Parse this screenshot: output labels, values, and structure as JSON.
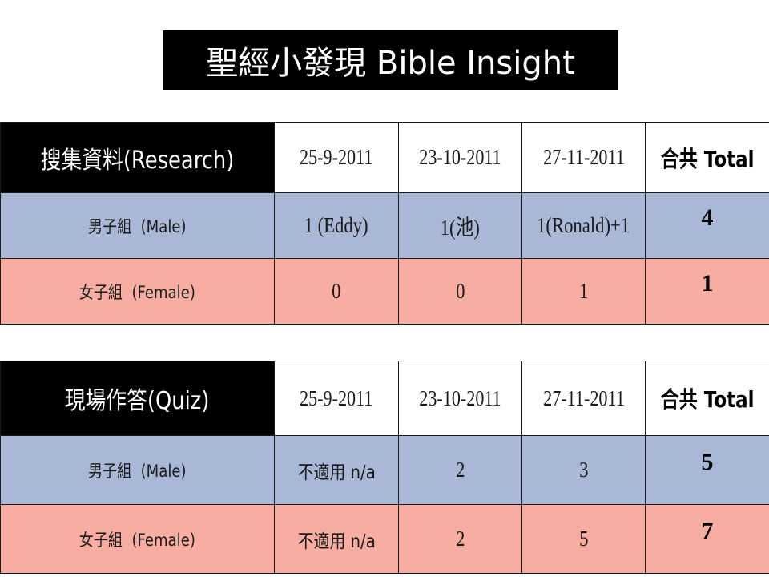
{
  "slide_title": "聖經小發現 Bible Insight",
  "research_table": {
    "header": "搜集資料(Research)",
    "dates": [
      "25-9-2011",
      "23-10-2011",
      "27-11-2011"
    ],
    "total_header": "合共 Total",
    "rows": [
      {
        "label": "男子組  (Male)",
        "values": [
          "1 (Eddy)",
          "1(池)",
          "1(Ronald)+1"
        ],
        "total": "4"
      },
      {
        "label": "女子組  (Female)",
        "values": [
          "0",
          "0",
          "1"
        ],
        "total": "1"
      }
    ]
  },
  "quiz_table": {
    "header": "現場作答(Quiz)",
    "dates": [
      "25-9-2011",
      "23-10-2011",
      "27-11-2011"
    ],
    "total_header": "合共 Total",
    "rows": [
      {
        "label": "男子組  (Male)",
        "values": [
          "不適用 n/a",
          "2",
          "3"
        ],
        "total": "5"
      },
      {
        "label": "女子組  (Female)",
        "values": [
          "不適用 n/a",
          "2",
          "5"
        ],
        "total": "7"
      }
    ]
  },
  "colors": {
    "male_row": "#a8b8d6",
    "female_row": "#f8ada2",
    "header_black": "#000000"
  }
}
